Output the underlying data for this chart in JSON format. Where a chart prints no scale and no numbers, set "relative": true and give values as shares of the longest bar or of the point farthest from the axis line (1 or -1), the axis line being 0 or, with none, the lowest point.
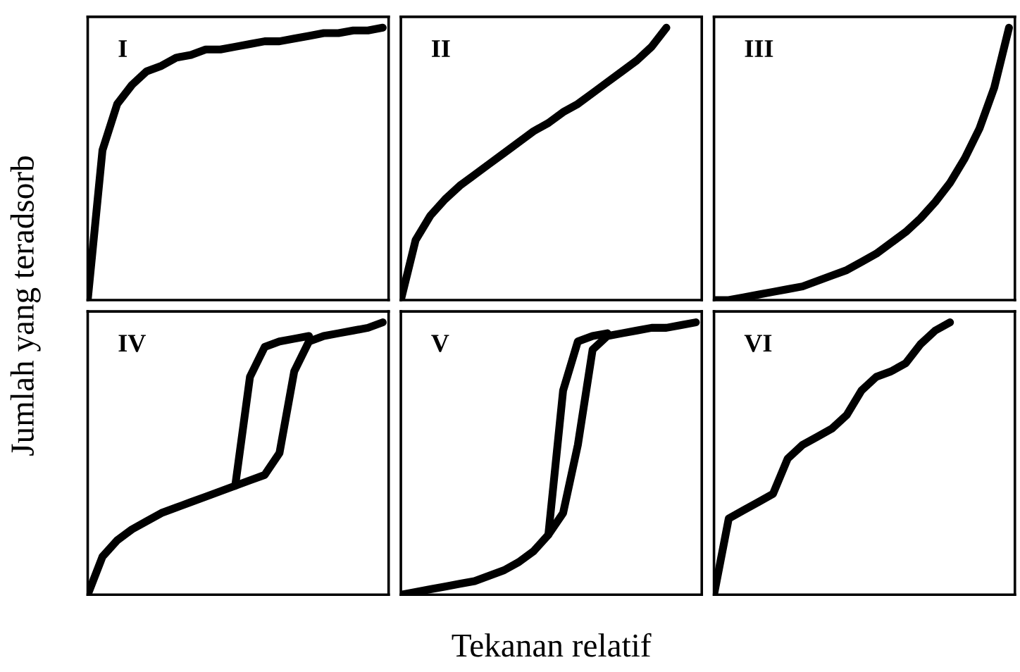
{
  "chart_data": [
    {
      "type": "line",
      "title": "I",
      "ylabel": "Jumlah yang teradsorb",
      "relative": true,
      "grid": false,
      "categories": [
        null,
        null,
        null,
        null,
        null,
        null,
        null,
        null,
        null,
        null,
        null,
        null,
        null,
        null,
        null,
        null,
        null,
        null,
        null,
        null,
        null
      ],
      "series": [
        {
          "color": "#000000",
          "values": [
            0,
            0.55,
            0.72,
            0.79,
            0.84,
            0.86,
            0.89,
            0.9,
            0.92,
            0.92,
            0.93,
            0.94,
            0.95,
            0.95,
            0.96,
            0.97,
            0.98,
            0.98,
            0.99,
            0.99,
            1
          ]
        }
      ]
    },
    {
      "type": "line",
      "title": "II",
      "relative": true,
      "grid": false,
      "categories": [
        null,
        null,
        null,
        null,
        null,
        null,
        null,
        null,
        null,
        null,
        null,
        null,
        null,
        null,
        null,
        null,
        null,
        null,
        null,
        null,
        null
      ],
      "series": [
        {
          "color": "#000000",
          "values": [
            0,
            0.22,
            0.31,
            0.37,
            0.42,
            0.46,
            0.5,
            0.54,
            0.58,
            0.62,
            0.65,
            0.69,
            0.72,
            0.76,
            0.8,
            0.84,
            0.88,
            0.93,
            1,
            null,
            null
          ]
        }
      ]
    },
    {
      "type": "line",
      "title": "III",
      "relative": true,
      "grid": false,
      "categories": [
        null,
        null,
        null,
        null,
        null,
        null,
        null,
        null,
        null,
        null,
        null,
        null,
        null,
        null,
        null,
        null,
        null,
        null,
        null,
        null,
        null
      ],
      "series": [
        {
          "color": "#000000",
          "values": [
            0,
            0,
            0.01,
            0.02,
            0.03,
            0.04,
            0.05,
            0.07,
            0.09,
            0.11,
            0.14,
            0.17,
            0.21,
            0.25,
            0.3,
            0.36,
            0.43,
            0.52,
            0.63,
            0.78,
            1
          ]
        }
      ]
    },
    {
      "type": "line",
      "title": "IV",
      "relative": true,
      "grid": false,
      "categories": [
        null,
        null,
        null,
        null,
        null,
        null,
        null,
        null,
        null,
        null,
        null,
        null,
        null,
        null,
        null,
        null,
        null,
        null,
        null,
        null,
        null
      ],
      "series": [
        {
          "color": "#000000",
          "values": [
            0,
            0.14,
            0.2,
            0.24,
            0.27,
            0.3,
            0.32,
            0.34,
            0.36,
            0.38,
            0.4,
            0.42,
            0.44,
            0.52,
            0.82,
            0.93,
            0.95,
            0.96,
            0.97,
            0.98,
            1
          ]
        },
        {
          "color": "#000000",
          "values": [
            null,
            null,
            null,
            null,
            null,
            null,
            null,
            null,
            null,
            null,
            0.4,
            0.8,
            0.91,
            0.93,
            0.94,
            0.95,
            null,
            null,
            null,
            null,
            null
          ]
        }
      ]
    },
    {
      "type": "line",
      "title": "V",
      "xlabel": "Tekanan relatif",
      "relative": true,
      "grid": false,
      "categories": [
        null,
        null,
        null,
        null,
        null,
        null,
        null,
        null,
        null,
        null,
        null,
        null,
        null,
        null,
        null,
        null,
        null,
        null,
        null,
        null,
        null
      ],
      "series": [
        {
          "color": "#000000",
          "values": [
            0,
            0.01,
            0.02,
            0.03,
            0.04,
            0.05,
            0.07,
            0.09,
            0.12,
            0.16,
            0.22,
            0.3,
            0.55,
            0.9,
            0.95,
            0.96,
            0.97,
            0.98,
            0.98,
            0.99,
            1
          ]
        },
        {
          "color": "#000000",
          "values": [
            null,
            null,
            null,
            null,
            null,
            null,
            null,
            null,
            null,
            null,
            0.22,
            0.75,
            0.93,
            0.95,
            0.96,
            null,
            null,
            null,
            null,
            null,
            null
          ]
        }
      ]
    },
    {
      "type": "line",
      "title": "VI",
      "relative": true,
      "grid": false,
      "categories": [
        null,
        null,
        null,
        null,
        null,
        null,
        null,
        null,
        null,
        null,
        null,
        null,
        null,
        null,
        null,
        null,
        null,
        null,
        null,
        null,
        null
      ],
      "series": [
        {
          "color": "#000000",
          "values": [
            0,
            0.28,
            0.31,
            0.34,
            0.37,
            0.5,
            0.55,
            0.58,
            0.61,
            0.66,
            0.75,
            0.8,
            0.82,
            0.85,
            0.92,
            0.97,
            1,
            null,
            null,
            null,
            null
          ]
        }
      ]
    }
  ]
}
